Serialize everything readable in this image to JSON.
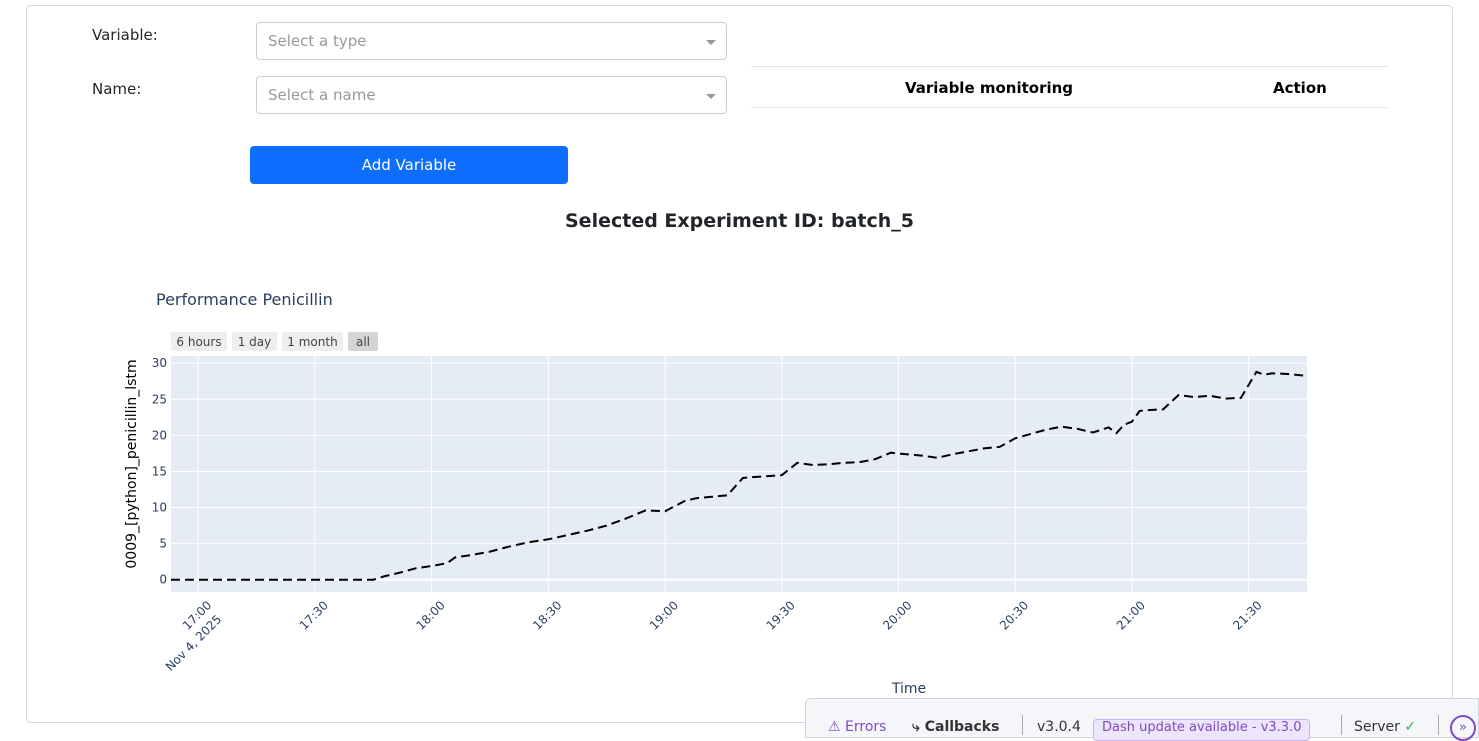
{
  "form": {
    "variable_label": "Variable:",
    "variable_placeholder": "Select a type",
    "name_label": "Name:",
    "name_placeholder": "Select a name",
    "add_button": "Add Variable"
  },
  "monitoring_table": {
    "col1": "Variable monitoring",
    "col2": "Action"
  },
  "experiment_title": "Selected Experiment ID: batch_5",
  "range_selector": [
    "6 hours",
    "1 day",
    "1 month",
    "all"
  ],
  "chart_data": {
    "type": "line",
    "title": "Performance Penicillin",
    "xlabel": "Time",
    "ylabel": "0009_[python]_penicillin_lstm",
    "x_ticks": [
      "17:00",
      "17:30",
      "18:00",
      "18:30",
      "19:00",
      "19:30",
      "20:00",
      "20:30",
      "21:00",
      "21:30"
    ],
    "x_tick_sub": "Nov 4, 2025",
    "y_ticks": [
      0,
      5,
      10,
      15,
      20,
      25,
      30
    ],
    "xlim": [
      "16:53",
      "21:45"
    ],
    "ylim": [
      -1.7,
      31
    ],
    "line_color": "#000000",
    "line_style": "dash",
    "grid": true,
    "series": [
      {
        "x": [
          "16:53",
          "17:10",
          "17:30",
          "17:45",
          "17:48",
          "17:52",
          "17:56",
          "18:00",
          "18:04",
          "18:06",
          "18:10",
          "18:15",
          "18:20",
          "18:25",
          "18:30",
          "18:35",
          "18:40",
          "18:45",
          "18:50",
          "18:55",
          "19:00",
          "19:05",
          "19:08",
          "19:12",
          "19:16",
          "19:20",
          "19:22",
          "19:25",
          "19:30",
          "19:34",
          "19:38",
          "19:42",
          "19:46",
          "19:50",
          "19:54",
          "19:58",
          "20:02",
          "20:06",
          "20:10",
          "20:14",
          "20:18",
          "20:22",
          "20:26",
          "20:30",
          "20:34",
          "20:38",
          "20:42",
          "20:46",
          "20:50",
          "20:54",
          "20:56",
          "20:58",
          "21:00",
          "21:02",
          "21:04",
          "21:08",
          "21:12",
          "21:16",
          "21:20",
          "21:24",
          "21:28",
          "21:32",
          "21:34",
          "21:36",
          "21:40",
          "21:44"
        ],
        "y": [
          0,
          0,
          0,
          0,
          0.5,
          1.0,
          1.6,
          1.9,
          2.3,
          3.1,
          3.4,
          3.9,
          4.6,
          5.2,
          5.6,
          6.2,
          6.8,
          7.5,
          8.5,
          9.6,
          9.5,
          10.9,
          11.3,
          11.5,
          11.7,
          14.1,
          14.2,
          14.3,
          14.5,
          16.2,
          15.9,
          16.0,
          16.2,
          16.3,
          16.7,
          17.6,
          17.4,
          17.2,
          16.9,
          17.4,
          17.8,
          18.2,
          18.4,
          19.6,
          20.2,
          20.8,
          21.2,
          20.9,
          20.4,
          21.1,
          20.3,
          21.5,
          21.9,
          23.4,
          23.5,
          23.6,
          25.6,
          25.3,
          25.5,
          25.1,
          25.2,
          28.8,
          28.4,
          28.6,
          28.5,
          28.3
        ]
      }
    ]
  },
  "debug_bar": {
    "errors": "Errors",
    "callbacks": "Callbacks",
    "version": "v3.0.4",
    "update": "Dash update available - v3.3.0",
    "server": "Server"
  }
}
